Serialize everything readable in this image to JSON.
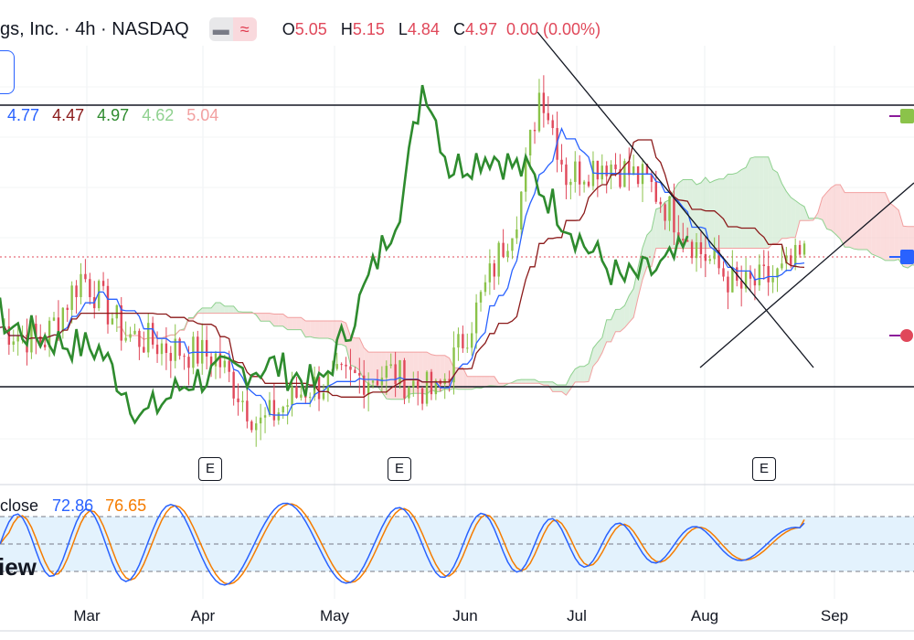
{
  "header": {
    "title": "gs, Inc. · 4h · NASDAQ",
    "toggle_icon_1": "minus-icon",
    "toggle_icon_2": "wave-icon",
    "ohlc": {
      "o_label": "O",
      "o": "5.05",
      "h_label": "H",
      "h": "5.15",
      "l_label": "L",
      "l": "4.84",
      "c_label": "C",
      "c": "4.97",
      "change": "0.00 (0.00%)"
    }
  },
  "indicator_values": [
    "4.77",
    "4.47",
    "4.97",
    "4.62",
    "5.04"
  ],
  "stochastic": {
    "label": "close",
    "k": "72.86",
    "d": "76.65"
  },
  "watermark": "iew",
  "earnings_badge": "E",
  "x_axis": [
    "Mar",
    "Apr",
    "May",
    "Jun",
    "Jul",
    "Aug",
    "Sep"
  ],
  "colors": {
    "up": "#8bc34a",
    "down": "#e0485a",
    "tenkan": "#2962ff",
    "kijun": "#8b1a1a",
    "chikou": "#2e8b2e",
    "cloud_bull": "#c8e6c9",
    "cloud_bear": "#f8c6c6",
    "stoch_k": "#2962ff",
    "stoch_d": "#f57c00"
  },
  "chart_data": {
    "type": "line",
    "title": "gs, Inc. · 4h · NASDAQ",
    "x_tick_labels": [
      "Mar",
      "Apr",
      "May",
      "Jun",
      "Jul",
      "Aug",
      "Sep"
    ],
    "price_ohlc_last": {
      "open": 5.05,
      "high": 5.15,
      "low": 4.84,
      "close": 4.97,
      "change": 0.0
    },
    "price_series": {
      "x": [
        "Feb 20",
        "Mar 1",
        "Mar 10",
        "Mar 20",
        "Apr 1",
        "Apr 10",
        "Apr 20",
        "May 1",
        "May 10",
        "May 20",
        "Jun 1",
        "Jun 10",
        "Jun 20",
        "Jun 25",
        "Jul 1",
        "Jul 10",
        "Jul 20",
        "Aug 1",
        "Aug 10",
        "Aug 20",
        "Aug 26"
      ],
      "close": [
        4.5,
        4.4,
        4.85,
        4.45,
        4.35,
        4.3,
        3.85,
        4.1,
        4.15,
        4.2,
        4.05,
        4.6,
        5.3,
        6.1,
        5.5,
        5.6,
        5.45,
        5.0,
        4.75,
        4.85,
        4.97
      ]
    },
    "series": [
      {
        "name": "",
        "values": [
          4.77
        ]
      },
      {
        "name": "",
        "values": [
          4.47
        ]
      },
      {
        "name": "",
        "values": [
          4.97
        ]
      },
      {
        "name": "",
        "values": [
          4.62
        ]
      },
      {
        "name": "",
        "values": [
          5.04
        ]
      }
    ],
    "stochastic": {
      "k": 72.86,
      "d": 76.65,
      "levels": [
        80,
        50,
        20
      ]
    },
    "earnings_dates": [
      "Apr 1",
      "May 18",
      "Aug 14"
    ]
  }
}
